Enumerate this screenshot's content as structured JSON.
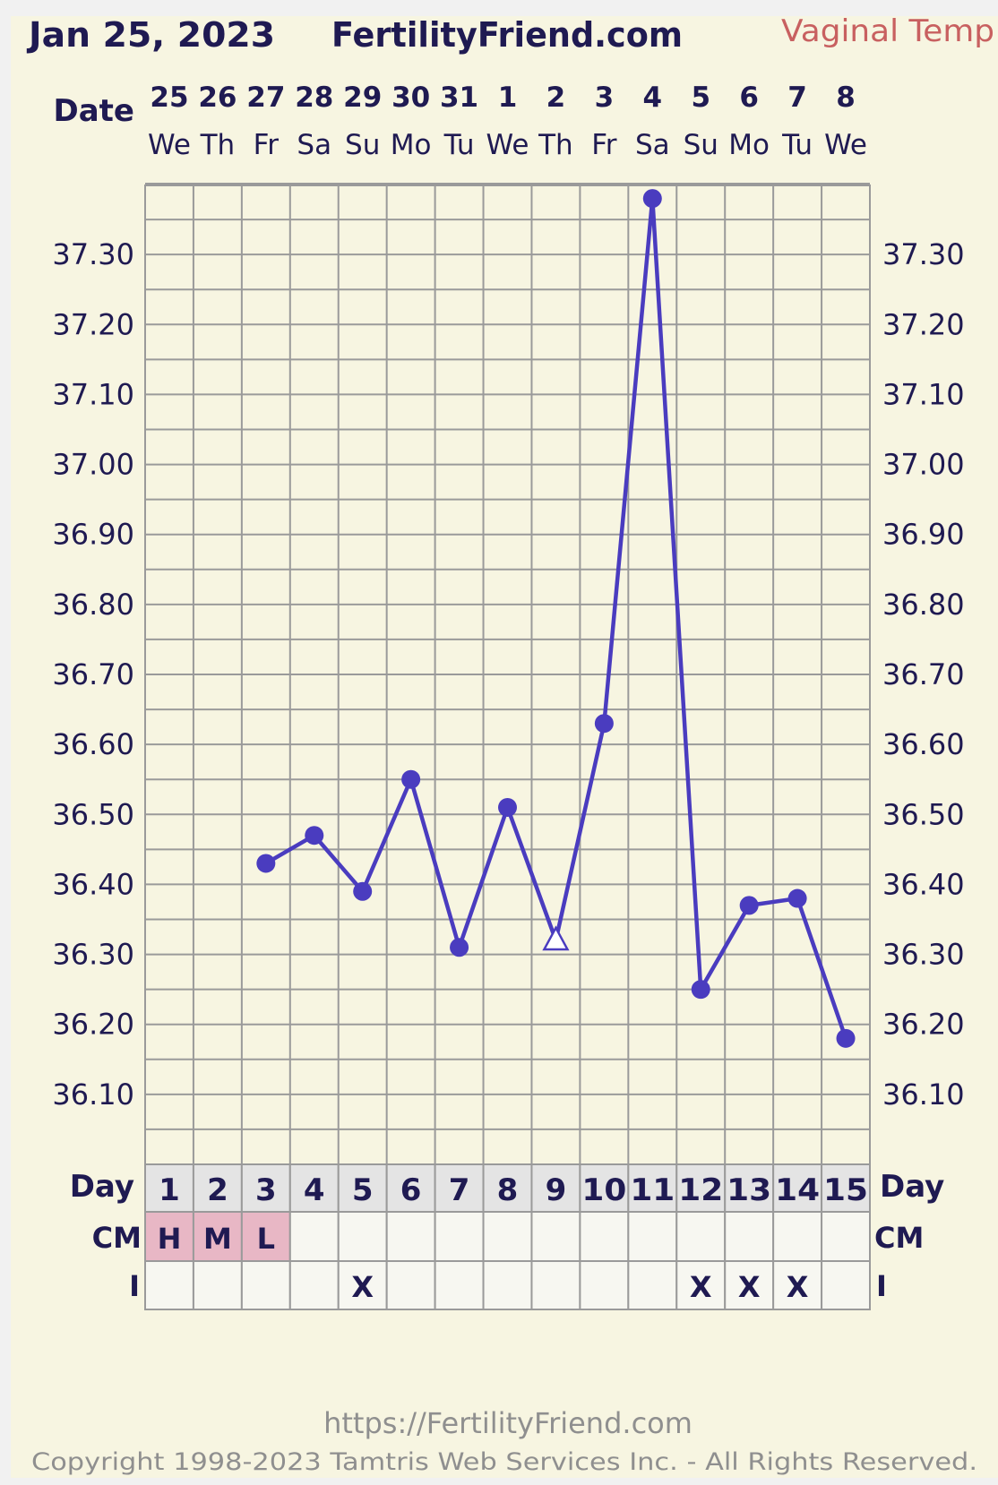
{
  "header": {
    "date": "Jan 25, 2023",
    "site": "FertilityFriend.com",
    "temp_type": "Vaginal Temp",
    "date_label": "Date"
  },
  "rows": {
    "day_label": "Day",
    "cm_label": "CM",
    "i_label": "I"
  },
  "footer": {
    "url": "https://FertilityFriend.com",
    "copyright": "Copyright 1998-2023 Tamtris Web Services Inc. - All Rights Reserved."
  },
  "colors": {
    "line": "#4a3cbf",
    "panel": "#f7f5e1",
    "grid": "#9a9a9a",
    "text": "#1f1a52",
    "temp_type": "#c86060",
    "cm_cell": "#e8b7c5",
    "day_cell": "#e4e4e4"
  },
  "chart_data": {
    "type": "line",
    "dates": [
      "25",
      "26",
      "27",
      "28",
      "29",
      "30",
      "31",
      "1",
      "2",
      "3",
      "4",
      "5",
      "6",
      "7",
      "8"
    ],
    "weekdays": [
      "We",
      "Th",
      "Fr",
      "Sa",
      "Su",
      "Mo",
      "Tu",
      "We",
      "Th",
      "Fr",
      "Sa",
      "Su",
      "Mo",
      "Tu",
      "We"
    ],
    "days": [
      "1",
      "2",
      "3",
      "4",
      "5",
      "6",
      "7",
      "8",
      "9",
      "10",
      "11",
      "12",
      "13",
      "14",
      "15"
    ],
    "ylim": [
      36.0,
      37.4
    ],
    "yticks": [
      "37.30",
      "37.20",
      "37.10",
      "37.00",
      "36.90",
      "36.80",
      "36.70",
      "36.60",
      "36.50",
      "36.40",
      "36.30",
      "36.20",
      "36.10"
    ],
    "grid": true,
    "temps": [
      null,
      null,
      36.43,
      36.47,
      36.39,
      36.55,
      36.31,
      36.51,
      36.32,
      36.63,
      37.38,
      36.25,
      36.37,
      36.38,
      36.18
    ],
    "markers": [
      "",
      "",
      "dot",
      "dot",
      "dot",
      "dot",
      "dot",
      "dot",
      "open-triangle",
      "dot",
      "dot",
      "dot",
      "dot",
      "dot",
      "dot"
    ],
    "cm": [
      "H",
      "M",
      "L",
      "",
      "",
      "",
      "",
      "",
      "",
      "",
      "",
      "",
      "",
      "",
      ""
    ],
    "intercourse": [
      "",
      "",
      "",
      "",
      "X",
      "",
      "",
      "",
      "",
      "",
      "",
      "X",
      "X",
      "X",
      ""
    ]
  }
}
